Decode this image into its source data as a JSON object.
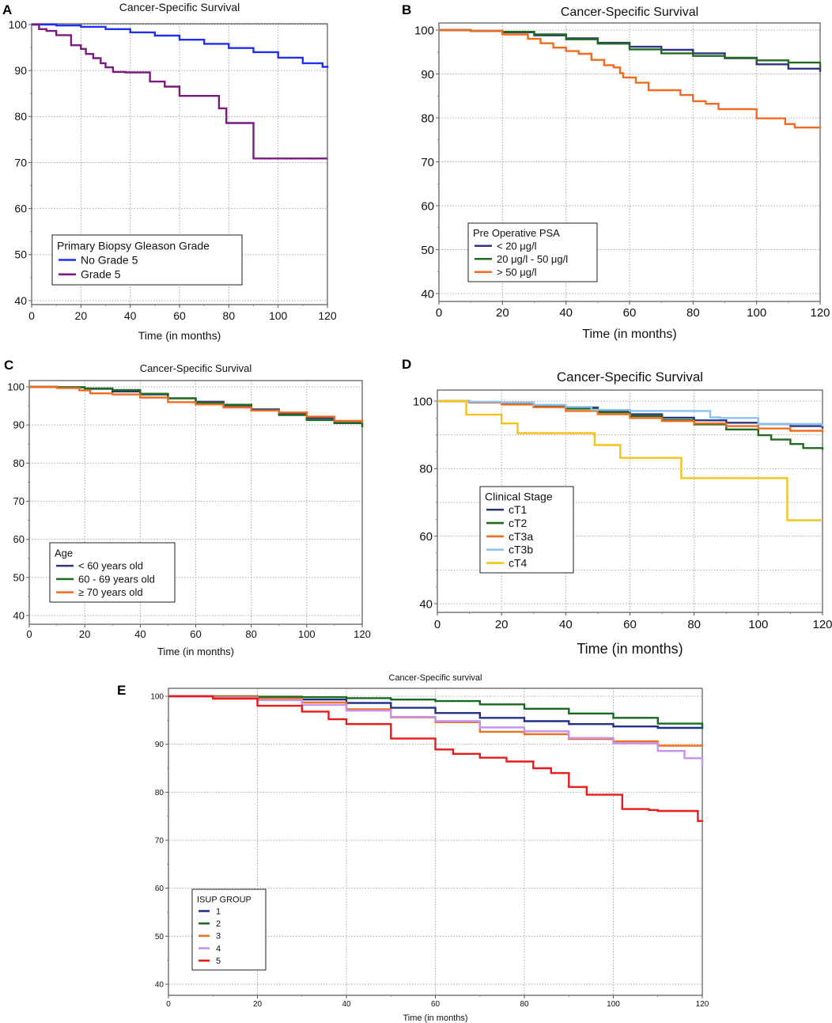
{
  "chart_data": [
    {
      "panel": "A",
      "type": "line",
      "title": "Cancer-Specific Survival",
      "xlabel": "Time (in months)",
      "ylabel": "",
      "xlim": [
        0,
        120
      ],
      "ylim": [
        38,
        101
      ],
      "xticks": [
        "0",
        "20",
        "40",
        "60",
        "80",
        "100",
        "120"
      ],
      "yticks": [
        "40",
        "50",
        "60",
        "70",
        "80",
        "90",
        "100"
      ],
      "legend_title": "Primary Biopsy Gleason Grade",
      "series": [
        {
          "name": "No Grade 5",
          "color": "#1f2ff5",
          "x": [
            0,
            10,
            20,
            30,
            40,
            50,
            60,
            70,
            80,
            90,
            100,
            110,
            118,
            120
          ],
          "y": [
            100,
            99.8,
            99.5,
            99,
            98.3,
            97.6,
            96.7,
            95.8,
            94.9,
            94,
            92.8,
            91.6,
            90.8,
            90.6
          ]
        },
        {
          "name": "Grade 5",
          "color": "#7a1a80",
          "x": [
            0,
            3,
            6,
            10,
            16,
            20,
            22,
            25,
            28,
            30,
            33,
            38,
            48,
            54,
            60,
            76,
            79,
            90,
            120
          ],
          "y": [
            100,
            99,
            98.6,
            97.7,
            95.5,
            94.7,
            93.6,
            92.7,
            91.6,
            90.7,
            89.7,
            89.6,
            87.6,
            86.5,
            84.5,
            81.8,
            78.6,
            70.9,
            70.9
          ]
        }
      ]
    },
    {
      "panel": "B",
      "type": "line",
      "title": "Cancer-Specific Survival",
      "xlabel": "Time (in months)",
      "ylabel": "",
      "xlim": [
        0,
        120
      ],
      "ylim": [
        38,
        101
      ],
      "xticks": [
        "0",
        "20",
        "40",
        "60",
        "80",
        "100",
        "120"
      ],
      "yticks": [
        "40",
        "50",
        "60",
        "70",
        "80",
        "90",
        "100"
      ],
      "legend_title": "Pre Operative PSA",
      "series": [
        {
          "name": "< 20 μg/l",
          "color": "#2c3580",
          "x": [
            0,
            10,
            20,
            30,
            40,
            50,
            60,
            70,
            80,
            90,
            100,
            110,
            120
          ],
          "y": [
            100,
            99.8,
            99.5,
            98.8,
            98.1,
            97.1,
            96.2,
            95.5,
            94.7,
            93.6,
            92.2,
            91.2,
            90.5
          ]
        },
        {
          "name": "20 μg/l - 50 μg/l",
          "color": "#1f6b1f",
          "x": [
            0,
            10,
            20,
            30,
            40,
            50,
            60,
            70,
            80,
            90,
            100,
            110,
            120
          ],
          "y": [
            100,
            99.8,
            99.6,
            99,
            97.9,
            96.9,
            95.6,
            94.7,
            94.1,
            93.7,
            93.1,
            92.6,
            91.4
          ]
        },
        {
          "name": "> 50 μg/l",
          "color": "#f06a1f",
          "x": [
            0,
            10,
            20,
            28,
            32,
            36,
            40,
            44,
            48,
            52,
            55,
            57,
            58,
            62,
            66,
            76,
            80,
            84,
            88,
            100,
            109,
            112,
            120
          ],
          "y": [
            100,
            99.8,
            99,
            98,
            97,
            96,
            95.2,
            94.6,
            93.2,
            92,
            91.5,
            90.2,
            89.2,
            88,
            86.3,
            85.2,
            83.8,
            83.2,
            82,
            79.9,
            78.6,
            77.8,
            77.6
          ]
        }
      ]
    },
    {
      "panel": "C",
      "type": "line",
      "title": "Cancer-Specific Survival",
      "xlabel": "Time (in months)",
      "ylabel": "",
      "xlim": [
        0,
        120
      ],
      "ylim": [
        38,
        101
      ],
      "xticks": [
        "0",
        "20",
        "40",
        "60",
        "80",
        "100",
        "120"
      ],
      "yticks": [
        "40",
        "50",
        "60",
        "70",
        "80",
        "90",
        "100"
      ],
      "legend_title": "Age",
      "series": [
        {
          "name": "< 60 years old",
          "color": "#2c3580",
          "x": [
            0,
            10,
            20,
            30,
            40,
            50,
            60,
            70,
            80,
            90,
            100,
            110,
            120
          ],
          "y": [
            100,
            99.9,
            99.5,
            98.8,
            98,
            97,
            96.1,
            95.1,
            94.1,
            93,
            91.8,
            90.5,
            89.9
          ]
        },
        {
          "name": "60 - 69 years old",
          "color": "#1f6b1f",
          "x": [
            0,
            10,
            20,
            30,
            40,
            50,
            60,
            70,
            80,
            90,
            100,
            110,
            120
          ],
          "y": [
            100,
            99.9,
            99.6,
            99.2,
            98.2,
            97,
            95.8,
            95.3,
            93.9,
            92.6,
            91.3,
            90.6,
            89.4
          ]
        },
        {
          "name": "≥ 70 years old",
          "color": "#f06a1f",
          "x": [
            0,
            10,
            18,
            22,
            30,
            40,
            50,
            60,
            70,
            80,
            90,
            100,
            110,
            120
          ],
          "y": [
            100,
            99.7,
            99.1,
            98.3,
            98,
            97.2,
            96,
            95.4,
            94.6,
            93.8,
            93.3,
            92.2,
            91.1,
            90.5
          ]
        }
      ]
    },
    {
      "panel": "D",
      "type": "line",
      "title": "Cancer-Specific Survival",
      "xlabel": "Time (in months)",
      "ylabel": "",
      "xlim": [
        0,
        120
      ],
      "ylim": [
        38,
        101
      ],
      "xticks": [
        "0",
        "20",
        "40",
        "60",
        "80",
        "100",
        "120"
      ],
      "yticks": [
        "40",
        "60",
        "80",
        "100"
      ],
      "legend_title": "Clinical Stage",
      "series": [
        {
          "name": "cT1",
          "color": "#2c3580",
          "x": [
            0,
            10,
            20,
            30,
            40,
            50,
            60,
            70,
            80,
            90,
            100,
            110,
            120
          ],
          "y": [
            100,
            99.7,
            99.3,
            98.8,
            98.1,
            97.2,
            96.1,
            95.1,
            94.3,
            93.6,
            93.2,
            92.6,
            91.9
          ]
        },
        {
          "name": "cT2",
          "color": "#1f6b1f",
          "x": [
            0,
            10,
            20,
            30,
            40,
            50,
            60,
            70,
            80,
            90,
            100,
            104,
            110,
            114,
            120
          ],
          "y": [
            100,
            99.6,
            99.1,
            98.5,
            97.8,
            96.7,
            95.6,
            94.4,
            93.1,
            91.6,
            89.9,
            88.6,
            87.3,
            86.1,
            85.6
          ]
        },
        {
          "name": "cT3a",
          "color": "#f06a1f",
          "x": [
            0,
            10,
            20,
            30,
            40,
            50,
            60,
            70,
            80,
            90,
            100,
            110,
            120
          ],
          "y": [
            100,
            99.6,
            99,
            98.2,
            97.1,
            96.1,
            95,
            94.1,
            93.4,
            92.6,
            91.9,
            91.2,
            90.7
          ]
        },
        {
          "name": "cT3b",
          "color": "#8cc0ee",
          "x": [
            0,
            10,
            20,
            30,
            40,
            48,
            60,
            76,
            85,
            88,
            100,
            120
          ],
          "y": [
            100,
            99.8,
            99.6,
            98.9,
            98.3,
            97.4,
            97.1,
            97.1,
            95.2,
            95,
            93.2,
            92.5
          ]
        },
        {
          "name": "cT4",
          "color": "#f5c218",
          "x": [
            0,
            9,
            20,
            25,
            49,
            57,
            76,
            109,
            120
          ],
          "y": [
            100,
            96,
            93.4,
            90.5,
            87,
            83.2,
            77.2,
            64.7,
            64.7
          ]
        }
      ]
    },
    {
      "panel": "E",
      "type": "line",
      "title": "Cancer-Specific survival",
      "xlabel": "Time (in months)",
      "ylabel": "",
      "xlim": [
        0,
        120
      ],
      "ylim": [
        38,
        101
      ],
      "xticks": [
        "0",
        "20",
        "40",
        "60",
        "80",
        "100",
        "120"
      ],
      "yticks": [
        "40",
        "50",
        "60",
        "70",
        "80",
        "90",
        "100"
      ],
      "legend_title": "ISUP GROUP",
      "series": [
        {
          "name": "1",
          "color": "#24308c",
          "x": [
            0,
            10,
            20,
            30,
            40,
            50,
            60,
            70,
            80,
            90,
            100,
            110,
            120
          ],
          "y": [
            100,
            99.9,
            99.7,
            99.3,
            98.6,
            97.6,
            96.5,
            95.5,
            94.8,
            94.2,
            93.7,
            93.4,
            93.2
          ]
        },
        {
          "name": "2",
          "color": "#186a1e",
          "x": [
            0,
            10,
            20,
            30,
            40,
            50,
            60,
            70,
            80,
            90,
            100,
            110,
            120
          ],
          "y": [
            100,
            100,
            99.9,
            99.8,
            99.6,
            99.3,
            99,
            98.3,
            97.4,
            96.4,
            95.5,
            94.3,
            93.3
          ]
        },
        {
          "name": "3",
          "color": "#f07020",
          "x": [
            0,
            10,
            20,
            30,
            40,
            50,
            60,
            70,
            80,
            90,
            100,
            110,
            120
          ],
          "y": [
            100,
            99.9,
            99.5,
            98.7,
            97.3,
            95.6,
            94.6,
            92.6,
            92.1,
            91.1,
            90.6,
            89.7,
            89.6
          ]
        },
        {
          "name": "4",
          "color": "#c294f0",
          "x": [
            0,
            10,
            20,
            30,
            40,
            50,
            60,
            70,
            80,
            90,
            100,
            110,
            116,
            120
          ],
          "y": [
            100,
            99.7,
            99.2,
            98.2,
            97,
            95.7,
            94.8,
            93.5,
            92.7,
            91.3,
            90.2,
            88.6,
            87.1,
            85.4
          ]
        },
        {
          "name": "5",
          "color": "#ea1a1a",
          "x": [
            0,
            10,
            20,
            30,
            36,
            40,
            50,
            60,
            64,
            70,
            76,
            82,
            86,
            90,
            94,
            100,
            102,
            108,
            110,
            119,
            120
          ],
          "y": [
            100,
            99.5,
            98,
            96.8,
            95.2,
            94.2,
            91.2,
            88.9,
            88,
            87.2,
            86.4,
            85,
            84,
            81.1,
            79.5,
            79.5,
            76.5,
            76.3,
            76.1,
            74,
            73.9
          ]
        }
      ]
    }
  ]
}
